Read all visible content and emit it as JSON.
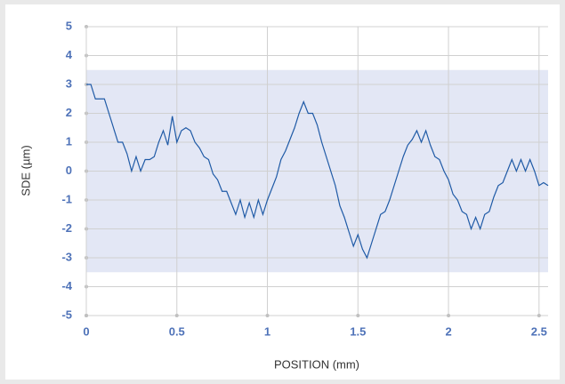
{
  "chart_data": {
    "type": "line",
    "x_label": "POSITION (mm)",
    "y_label": "SDE (µm)",
    "xlim": [
      0,
      2.55
    ],
    "xticks": [
      0,
      0.5,
      1,
      1.5,
      2,
      2.5
    ],
    "ylim": [
      -5,
      5
    ],
    "yticks": [
      -5,
      -4,
      -3,
      -2,
      -1,
      0,
      1,
      2,
      3,
      4,
      5
    ],
    "grid": true,
    "band": [
      -3.5,
      3.5
    ],
    "band_color": "#e3e7f5",
    "x": [
      0,
      0.025,
      0.05,
      0.075,
      0.1,
      0.125,
      0.15,
      0.175,
      0.2,
      0.225,
      0.25,
      0.275,
      0.3,
      0.325,
      0.35,
      0.375,
      0.4,
      0.425,
      0.45,
      0.475,
      0.5,
      0.525,
      0.55,
      0.575,
      0.6,
      0.625,
      0.65,
      0.675,
      0.7,
      0.725,
      0.75,
      0.775,
      0.8,
      0.825,
      0.85,
      0.875,
      0.9,
      0.925,
      0.95,
      0.975,
      1,
      1.025,
      1.05,
      1.075,
      1.1,
      1.125,
      1.15,
      1.175,
      1.2,
      1.225,
      1.25,
      1.275,
      1.3,
      1.325,
      1.35,
      1.375,
      1.4,
      1.425,
      1.45,
      1.475,
      1.5,
      1.525,
      1.55,
      1.575,
      1.6,
      1.625,
      1.65,
      1.675,
      1.7,
      1.725,
      1.75,
      1.775,
      1.8,
      1.825,
      1.85,
      1.875,
      1.9,
      1.925,
      1.95,
      1.975,
      2,
      2.025,
      2.05,
      2.075,
      2.1,
      2.125,
      2.15,
      2.175,
      2.2,
      2.225,
      2.25,
      2.275,
      2.3,
      2.325,
      2.35,
      2.375,
      2.4,
      2.425,
      2.45,
      2.475,
      2.5,
      2.525,
      2.55
    ],
    "series": [
      {
        "name": "SDE",
        "color": "#1f5aa6",
        "values": [
          3.0,
          3.0,
          2.5,
          2.5,
          2.5,
          2.0,
          1.5,
          1.0,
          1.0,
          0.6,
          0.0,
          0.5,
          0.0,
          0.4,
          0.4,
          0.5,
          1.0,
          1.4,
          0.9,
          1.9,
          1.0,
          1.4,
          1.5,
          1.4,
          1.0,
          0.8,
          0.5,
          0.4,
          -0.1,
          -0.3,
          -0.7,
          -0.7,
          -1.1,
          -1.5,
          -1.0,
          -1.6,
          -1.1,
          -1.6,
          -1.0,
          -1.5,
          -1.0,
          -0.6,
          -0.2,
          0.4,
          0.7,
          1.1,
          1.5,
          2.0,
          2.4,
          2.0,
          2.0,
          1.6,
          1.0,
          0.5,
          0.0,
          -0.5,
          -1.2,
          -1.6,
          -2.1,
          -2.6,
          -2.2,
          -2.7,
          -3.0,
          -2.5,
          -2.0,
          -1.5,
          -1.4,
          -1.0,
          -0.5,
          0.0,
          0.5,
          0.9,
          1.1,
          1.4,
          1.0,
          1.4,
          0.9,
          0.5,
          0.4,
          0.0,
          -0.3,
          -0.8,
          -1.0,
          -1.4,
          -1.5,
          -2.0,
          -1.6,
          -2.0,
          -1.5,
          -1.4,
          -0.9,
          -0.5,
          -0.4,
          0.0,
          0.4,
          0.0,
          0.4,
          0.0,
          0.4,
          0.0,
          -0.5,
          -0.4,
          -0.5
        ]
      }
    ]
  }
}
